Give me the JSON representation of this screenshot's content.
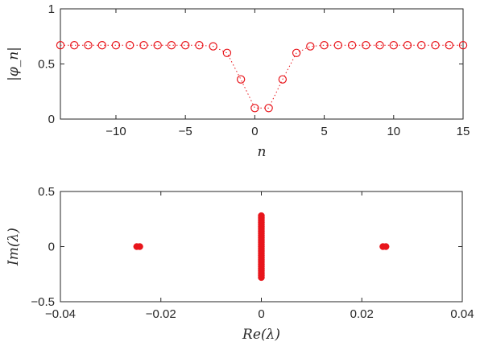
{
  "chart_data": [
    {
      "type": "line",
      "xlabel": "n",
      "ylabel": "|φ_n|",
      "xlim": [
        -14,
        15
      ],
      "ylim": [
        0,
        1
      ],
      "xticks": [
        -10,
        -5,
        0,
        5,
        10,
        15
      ],
      "yticks": [
        0,
        0.5,
        1
      ],
      "grid": false,
      "marker": "open-circle",
      "line_style": "dotted",
      "color": "#e8151b",
      "series": [
        {
          "x": [
            -14,
            -13,
            -12,
            -11,
            -10,
            -9,
            -8,
            -7,
            -6,
            -5,
            -4,
            -3,
            -2,
            -1,
            0,
            1,
            2,
            3,
            4,
            5,
            6,
            7,
            8,
            9,
            10,
            11,
            12,
            13,
            14,
            15
          ],
          "y": [
            0.67,
            0.67,
            0.67,
            0.67,
            0.67,
            0.67,
            0.67,
            0.67,
            0.67,
            0.67,
            0.67,
            0.66,
            0.6,
            0.36,
            0.1,
            0.1,
            0.36,
            0.6,
            0.66,
            0.67,
            0.67,
            0.67,
            0.67,
            0.67,
            0.67,
            0.67,
            0.67,
            0.67,
            0.67,
            0.67
          ]
        }
      ]
    },
    {
      "type": "scatter",
      "xlabel": "Re(λ)",
      "ylabel": "Im(λ)",
      "xlim": [
        -0.04,
        0.04
      ],
      "ylim": [
        -0.5,
        0.5
      ],
      "xticks": [
        -0.04,
        -0.02,
        0,
        0.02,
        0.04
      ],
      "yticks": [
        -0.5,
        0,
        0.5
      ],
      "grid": false,
      "marker": "filled-circle",
      "color": "#e8151b",
      "series": [
        {
          "points": [
            [
              -0.0248,
              0
            ],
            [
              -0.0242,
              0
            ],
            [
              0.0242,
              0
            ],
            [
              0.0248,
              0
            ],
            [
              0,
              -0.28
            ],
            [
              0,
              -0.26
            ],
            [
              0,
              -0.24
            ],
            [
              0,
              -0.22
            ],
            [
              0,
              -0.2
            ],
            [
              0,
              -0.18
            ],
            [
              0,
              -0.16
            ],
            [
              0,
              -0.14
            ],
            [
              0,
              -0.12
            ],
            [
              0,
              -0.1
            ],
            [
              0,
              -0.08
            ],
            [
              0,
              -0.06
            ],
            [
              0,
              -0.04
            ],
            [
              0,
              -0.02
            ],
            [
              0,
              0
            ],
            [
              0,
              0.02
            ],
            [
              0,
              0.04
            ],
            [
              0,
              0.06
            ],
            [
              0,
              0.08
            ],
            [
              0,
              0.1
            ],
            [
              0,
              0.12
            ],
            [
              0,
              0.14
            ],
            [
              0,
              0.16
            ],
            [
              0,
              0.18
            ],
            [
              0,
              0.2
            ],
            [
              0,
              0.22
            ],
            [
              0,
              0.24
            ],
            [
              0,
              0.26
            ],
            [
              0,
              0.28
            ]
          ]
        }
      ]
    }
  ]
}
